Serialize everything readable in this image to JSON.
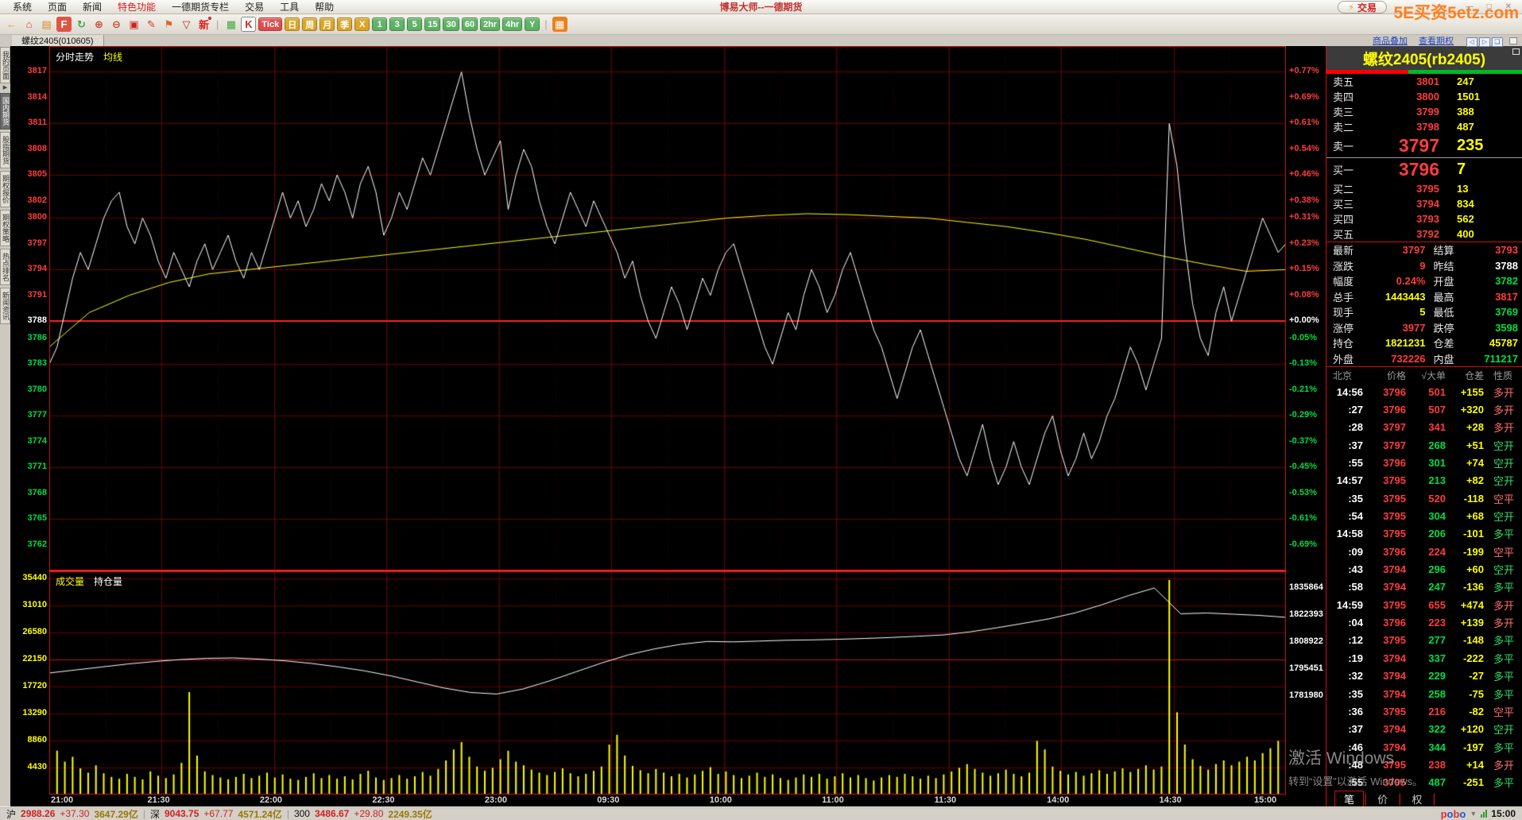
{
  "window": {
    "title": "博易大师--一德期货",
    "trade_button": "交易",
    "watermark": "5E买资5etz.com",
    "win_controls": "—  □  ✕"
  },
  "menu": {
    "items": [
      "系统",
      "页面",
      "新闻",
      "特色功能",
      "一德期货专栏",
      "交易",
      "工具",
      "帮助"
    ],
    "highlight": "特色功能"
  },
  "toolbar": {
    "items": [
      {
        "t": "icon",
        "name": "back-icon",
        "g": "←",
        "fg": "#d89a2a"
      },
      {
        "t": "icon",
        "name": "home-icon",
        "g": "⌂",
        "fg": "#cc4433"
      },
      {
        "t": "icon",
        "name": "news-icon",
        "g": "▤",
        "fg": "#d8882a"
      },
      {
        "t": "icon",
        "name": "f10-info-icon",
        "g": "F",
        "fg": "#ffffff",
        "bg": "#dd5544"
      },
      {
        "t": "icon",
        "name": "refresh-icon",
        "g": "↻",
        "fg": "#3faa3f"
      },
      {
        "t": "icon",
        "name": "zoom-in-icon",
        "g": "⊕",
        "fg": "#cc4433"
      },
      {
        "t": "icon",
        "name": "zoom-out-icon",
        "g": "⊖",
        "fg": "#cc4433"
      },
      {
        "t": "icon",
        "name": "overlay-region-icon",
        "g": "▣",
        "fg": "#cc2222"
      },
      {
        "t": "icon",
        "name": "draw-icon",
        "g": "✎",
        "fg": "#cc3322"
      },
      {
        "t": "icon",
        "name": "alert-icon",
        "g": "⚑",
        "fg": "#dd6622"
      },
      {
        "t": "icon",
        "name": "filter-icon",
        "g": "▽",
        "fg": "#aa3333"
      },
      {
        "t": "icon",
        "name": "new-feature-icon",
        "g": "新",
        "fg": "#e02020",
        "dot": true
      },
      {
        "t": "sep"
      },
      {
        "t": "icon",
        "name": "quote-grid-icon",
        "g": "▦",
        "fg": "#3faa3f"
      },
      {
        "t": "icon",
        "name": "kline-chart-icon",
        "g": "K",
        "fg": "#c03030",
        "bg": "#ffffff",
        "sel": true
      },
      {
        "t": "btn",
        "name": "period-tick-button",
        "label": "Tick",
        "bg": "#e04545"
      },
      {
        "t": "btn",
        "name": "period-day-button",
        "label": "日",
        "bg": "#d9a21b"
      },
      {
        "t": "btn",
        "name": "period-week-button",
        "label": "周",
        "bg": "#d9a21b"
      },
      {
        "t": "btn",
        "name": "period-month-button",
        "label": "月",
        "bg": "#d9a21b"
      },
      {
        "t": "btn",
        "name": "period-season-button",
        "label": "季",
        "bg": "#d9a21b"
      },
      {
        "t": "btn",
        "name": "period-x-button",
        "label": "X",
        "bg": "#d9a21b"
      },
      {
        "t": "btn",
        "name": "period-1-button",
        "label": "1",
        "bg": "#56b060"
      },
      {
        "t": "btn",
        "name": "period-3-button",
        "label": "3",
        "bg": "#56b060"
      },
      {
        "t": "btn",
        "name": "period-5-button",
        "label": "5",
        "bg": "#56b060"
      },
      {
        "t": "btn",
        "name": "period-15-button",
        "label": "15",
        "bg": "#56b060"
      },
      {
        "t": "btn",
        "name": "period-30-button",
        "label": "30",
        "bg": "#56b060"
      },
      {
        "t": "btn",
        "name": "period-60-button",
        "label": "60",
        "bg": "#56b060"
      },
      {
        "t": "btn",
        "name": "period-2hr-button",
        "label": "2hr",
        "bg": "#56b060"
      },
      {
        "t": "btn",
        "name": "period-4hr-button",
        "label": "4hr",
        "bg": "#56b060"
      },
      {
        "t": "btn",
        "name": "period-y-button",
        "label": "Y",
        "bg": "#56b060"
      },
      {
        "t": "sep"
      },
      {
        "t": "icon",
        "name": "multi-view-icon",
        "g": "▦",
        "fg": "#ffffff",
        "bg": "#e8821e"
      }
    ]
  },
  "tabbar": {
    "tab": "螺纹2405(010605)",
    "links": [
      "商品叠加",
      "查看期权"
    ],
    "nav_icons": [
      "◁",
      "▷",
      "❏"
    ]
  },
  "sidebar": {
    "items": [
      "我的页面",
      "国内期货",
      "股指期货",
      "期权报价",
      "期权策略",
      "热点排名",
      "新闻资讯"
    ],
    "active_index": 1,
    "arrow": "▶"
  },
  "colors": {
    "up": "#ff3c3c",
    "down": "#00dd44",
    "warn": "#ffff00",
    "white": "#ffffff",
    "grid": "#6a0000",
    "grid_bright": "#ff2222",
    "border": "#cf0f0f"
  },
  "chart_data": [
    {
      "type": "line",
      "title": "分时走势",
      "legend": [
        "分时走势",
        "均线"
      ],
      "x_ticks": [
        "21:00",
        "21:30",
        "22:00",
        "22:30",
        "23:00",
        "09:30",
        "10:00",
        "11:00",
        "11:30",
        "14:00",
        "14:30",
        "15:00"
      ],
      "prev_close": 3788,
      "ylim": [
        3759,
        3820
      ],
      "y_ticks_price": [
        3817,
        3814,
        3811,
        3808,
        3805,
        3802,
        3800,
        3797,
        3794,
        3791,
        3788,
        3786,
        3783,
        3780,
        3777,
        3774,
        3771,
        3768,
        3765,
        3762
      ],
      "y_ticks_pct": [
        "+0.77%",
        "+0.69%",
        "+0.61%",
        "+0.54%",
        "+0.46%",
        "+0.38%",
        "+0.31%",
        "+0.23%",
        "+0.15%",
        "+0.08%",
        "+0.00%",
        "-0.05%",
        "-0.13%",
        "-0.21%",
        "-0.29%",
        "-0.37%",
        "-0.45%",
        "-0.53%",
        "-0.61%",
        "-0.69%"
      ],
      "series": [
        {
          "name": "价格",
          "color": "#ffffff",
          "values": [
            3783,
            3785,
            3789,
            3793,
            3796,
            3794,
            3797,
            3800,
            3802,
            3803,
            3799,
            3797,
            3800,
            3798,
            3795,
            3793,
            3796,
            3794,
            3792,
            3795,
            3797,
            3794,
            3796,
            3798,
            3795,
            3793,
            3796,
            3794,
            3797,
            3800,
            3803,
            3800,
            3802,
            3799,
            3801,
            3804,
            3802,
            3805,
            3803,
            3800,
            3804,
            3806,
            3803,
            3798,
            3800,
            3803,
            3801,
            3804,
            3807,
            3805,
            3808,
            3811,
            3814,
            3817,
            3812,
            3808,
            3805,
            3807,
            3809,
            3801,
            3805,
            3808,
            3806,
            3802,
            3799,
            3797,
            3800,
            3803,
            3801,
            3799,
            3802,
            3800,
            3798,
            3796,
            3793,
            3795,
            3791,
            3788,
            3786,
            3789,
            3792,
            3790,
            3787,
            3790,
            3793,
            3791,
            3794,
            3796,
            3797,
            3794,
            3791,
            3788,
            3785,
            3783,
            3786,
            3789,
            3787,
            3791,
            3794,
            3792,
            3789,
            3791,
            3794,
            3796,
            3793,
            3790,
            3787,
            3785,
            3782,
            3779,
            3782,
            3785,
            3787,
            3784,
            3781,
            3778,
            3775,
            3772,
            3770,
            3773,
            3776,
            3772,
            3769,
            3771,
            3774,
            3771,
            3769,
            3772,
            3775,
            3777,
            3773,
            3770,
            3772,
            3775,
            3772,
            3774,
            3777,
            3779,
            3782,
            3785,
            3783,
            3780,
            3783,
            3786,
            3811,
            3806,
            3797,
            3790,
            3786,
            3784,
            3789,
            3792,
            3788,
            3791,
            3794,
            3797,
            3800,
            3798,
            3796,
            3797
          ]
        },
        {
          "name": "均线",
          "color": "#ffff00",
          "values": [
            3785,
            3789,
            3791,
            3792.5,
            3793.5,
            3794,
            3794.5,
            3795,
            3795.5,
            3796,
            3796.5,
            3797,
            3797.5,
            3798,
            3798.5,
            3799,
            3799.5,
            3800,
            3800.3,
            3800.5,
            3800.4,
            3800.2,
            3800,
            3799.5,
            3799,
            3798.3,
            3797.5,
            3796.5,
            3795.5,
            3794.6,
            3793.8,
            3794
          ]
        }
      ]
    },
    {
      "type": "bar",
      "title": "成交量",
      "legend": [
        "成交量",
        "持仓量"
      ],
      "y_ticks_left": [
        35440,
        31010,
        26580,
        22150,
        17720,
        13290,
        8860,
        4430
      ],
      "y_ticks_right": [
        1835864,
        1822393,
        1808922,
        1795451,
        1781980
      ],
      "vol_max": 36744,
      "oi_range": [
        1732878,
        1844580
      ],
      "series": [
        {
          "name": "成交量",
          "color": "#ffff00",
          "values": [
            9800,
            7200,
            5400,
            6200,
            4300,
            3600,
            4800,
            3500,
            2900,
            2600,
            3400,
            2900,
            2500,
            3800,
            3100,
            2700,
            3300,
            5200,
            16800,
            6400,
            3800,
            3200,
            2800,
            2500,
            2900,
            3400,
            2700,
            3100,
            3600,
            2800,
            3300,
            2600,
            2400,
            2900,
            3500,
            2700,
            3200,
            2600,
            3000,
            2500,
            3400,
            3900,
            2800,
            2400,
            2700,
            3200,
            2600,
            3000,
            3700,
            3100,
            4200,
            5600,
            7400,
            8600,
            6200,
            4600,
            3900,
            4400,
            5800,
            7200,
            5400,
            4800,
            4100,
            3600,
            3200,
            3700,
            4300,
            3500,
            3000,
            3400,
            3900,
            4600,
            8200,
            9800,
            6400,
            4700,
            4000,
            3500,
            4200,
            3600,
            3000,
            3400,
            2800,
            3300,
            3900,
            4500,
            3400,
            3800,
            3200,
            2700,
            3100,
            3600,
            2900,
            3300,
            2700,
            2400,
            2800,
            3300,
            2900,
            3400,
            2600,
            3000,
            3500,
            2800,
            3200,
            2700,
            2300,
            2800,
            3200,
            2900,
            3400,
            3000,
            2600,
            3100,
            2700,
            3300,
            3800,
            4400,
            5000,
            4200,
            3600,
            3100,
            3500,
            4100,
            3400,
            3000,
            3600,
            8800,
            7400,
            4600,
            3900,
            3300,
            3700,
            3100,
            3500,
            4000,
            3400,
            3800,
            4300,
            3700,
            4200,
            4800,
            4100,
            4600,
            35200,
            13500,
            8200,
            5800,
            4700,
            4100,
            5000,
            5600,
            4800,
            5400,
            6200,
            5600,
            6800,
            7600,
            8800,
            8200
          ]
        },
        {
          "name": "持仓量",
          "color": "#ffffff",
          "values": [
            1793500,
            1795000,
            1796500,
            1798000,
            1799200,
            1800200,
            1800800,
            1801000,
            1800400,
            1799500,
            1798200,
            1796500,
            1794500,
            1792000,
            1789000,
            1786000,
            1783800,
            1783000,
            1785500,
            1789500,
            1794000,
            1798500,
            1802500,
            1805500,
            1807800,
            1809200,
            1809000,
            1809400,
            1809800,
            1810000,
            1810300,
            1810700,
            1811200,
            1811800,
            1812500,
            1814000,
            1816000,
            1818200,
            1820500,
            1823500,
            1827500,
            1832000,
            1835864,
            1823000,
            1823400,
            1822800,
            1822200,
            1821231
          ]
        }
      ]
    }
  ],
  "quote": {
    "title": "螺纹2405(rb2405)",
    "strength": {
      "sell_pct": 42,
      "buy_pct": 58
    },
    "sells": [
      [
        "卖五",
        3801,
        247
      ],
      [
        "卖四",
        3800,
        1501
      ],
      [
        "卖三",
        3799,
        388
      ],
      [
        "卖二",
        3798,
        487
      ],
      [
        "卖一",
        3797,
        235
      ]
    ],
    "buys": [
      [
        "买一",
        3796,
        7
      ],
      [
        "买二",
        3795,
        13
      ],
      [
        "买三",
        3794,
        834
      ],
      [
        "买四",
        3793,
        562
      ],
      [
        "买五",
        3792,
        400
      ]
    ],
    "stats": [
      [
        "最新",
        "3797",
        "r",
        "结算",
        "3793",
        "r"
      ],
      [
        "涨跌",
        "9",
        "r",
        "昨结",
        "3788",
        "w"
      ],
      [
        "幅度",
        "0.24%",
        "r",
        "开盘",
        "3782",
        "g"
      ],
      [
        "总手",
        "1443443",
        "y",
        "最高",
        "3817",
        "r"
      ],
      [
        "现手",
        "5",
        "y",
        "最低",
        "3769",
        "g"
      ],
      [
        "涨停",
        "3977",
        "r",
        "跌停",
        "3598",
        "g"
      ],
      [
        "持仓",
        "1821231",
        "y",
        "仓差",
        "45787",
        "y"
      ],
      [
        "外盘",
        "732226",
        "r",
        "内盘",
        "711217",
        "g"
      ]
    ],
    "tick_header": [
      "北京",
      "价格",
      "√大单",
      "仓差",
      "性质"
    ],
    "tick_rows": [
      {
        "t": "14:56",
        "p": 3796,
        "v": 501,
        "d": "+155",
        "n": "多开",
        "dir": "b"
      },
      {
        "t": ":27",
        "p": 3796,
        "v": 507,
        "d": "+320",
        "n": "多开",
        "dir": "b"
      },
      {
        "t": ":28",
        "p": 3797,
        "v": 341,
        "d": "+28",
        "n": "多开",
        "dir": "b"
      },
      {
        "t": ":37",
        "p": 3797,
        "v": 268,
        "d": "+51",
        "n": "空开",
        "dir": "s"
      },
      {
        "t": ":55",
        "p": 3796,
        "v": 301,
        "d": "+74",
        "n": "空开",
        "dir": "s"
      },
      {
        "t": "14:57",
        "p": 3795,
        "v": 213,
        "d": "+82",
        "n": "空开",
        "dir": "s"
      },
      {
        "t": ":35",
        "p": 3795,
        "v": 520,
        "d": "-118",
        "n": "空平",
        "dir": "b"
      },
      {
        "t": ":54",
        "p": 3795,
        "v": 304,
        "d": "+68",
        "n": "空开",
        "dir": "s"
      },
      {
        "t": "14:58",
        "p": 3795,
        "v": 206,
        "d": "-101",
        "n": "多平",
        "dir": "s"
      },
      {
        "t": ":09",
        "p": 3796,
        "v": 224,
        "d": "-199",
        "n": "空平",
        "dir": "b"
      },
      {
        "t": ":43",
        "p": 3794,
        "v": 296,
        "d": "+60",
        "n": "空开",
        "dir": "s"
      },
      {
        "t": ":58",
        "p": 3794,
        "v": 247,
        "d": "-136",
        "n": "多平",
        "dir": "s"
      },
      {
        "t": "14:59",
        "p": 3795,
        "v": 655,
        "d": "+474",
        "n": "多开",
        "dir": "b"
      },
      {
        "t": ":04",
        "p": 3796,
        "v": 223,
        "d": "+139",
        "n": "多开",
        "dir": "b"
      },
      {
        "t": ":12",
        "p": 3795,
        "v": 277,
        "d": "-148",
        "n": "多平",
        "dir": "s"
      },
      {
        "t": ":19",
        "p": 3794,
        "v": 337,
        "d": "-222",
        "n": "多平",
        "dir": "s"
      },
      {
        "t": ":32",
        "p": 3794,
        "v": 229,
        "d": "-27",
        "n": "多平",
        "dir": "s"
      },
      {
        "t": ":35",
        "p": 3794,
        "v": 258,
        "d": "-75",
        "n": "多平",
        "dir": "s"
      },
      {
        "t": ":36",
        "p": 3795,
        "v": 216,
        "d": "-82",
        "n": "空平",
        "dir": "b"
      },
      {
        "t": ":37",
        "p": 3794,
        "v": 322,
        "d": "+120",
        "n": "空开",
        "dir": "s"
      },
      {
        "t": ":46",
        "p": 3794,
        "v": 344,
        "d": "-197",
        "n": "多平",
        "dir": "s"
      },
      {
        "t": ":48",
        "p": 3795,
        "v": 238,
        "d": "+14",
        "n": "多开",
        "dir": "b"
      },
      {
        "t": ":55",
        "p": 3795,
        "v": 487,
        "d": "-251",
        "n": "多平",
        "dir": "s"
      }
    ],
    "tabs": [
      "笔",
      "价",
      "权"
    ],
    "active_tab": "笔"
  },
  "statusbar": {
    "indices": [
      {
        "label": "沪",
        "price": "2988.26",
        "change": "+37.30",
        "amount": "3647.29亿"
      },
      {
        "label": "深",
        "price": "9043.75",
        "change": "+67.77",
        "amount": "4571.24亿"
      },
      {
        "label": "300",
        "price": "3486.67",
        "change": "+29.80",
        "amount": "2249.35亿"
      }
    ],
    "brand": "pobo",
    "time": "15:00"
  },
  "activation": {
    "line1": "激活 Windows",
    "line2": "转到“设置”以激活 Windows。"
  }
}
